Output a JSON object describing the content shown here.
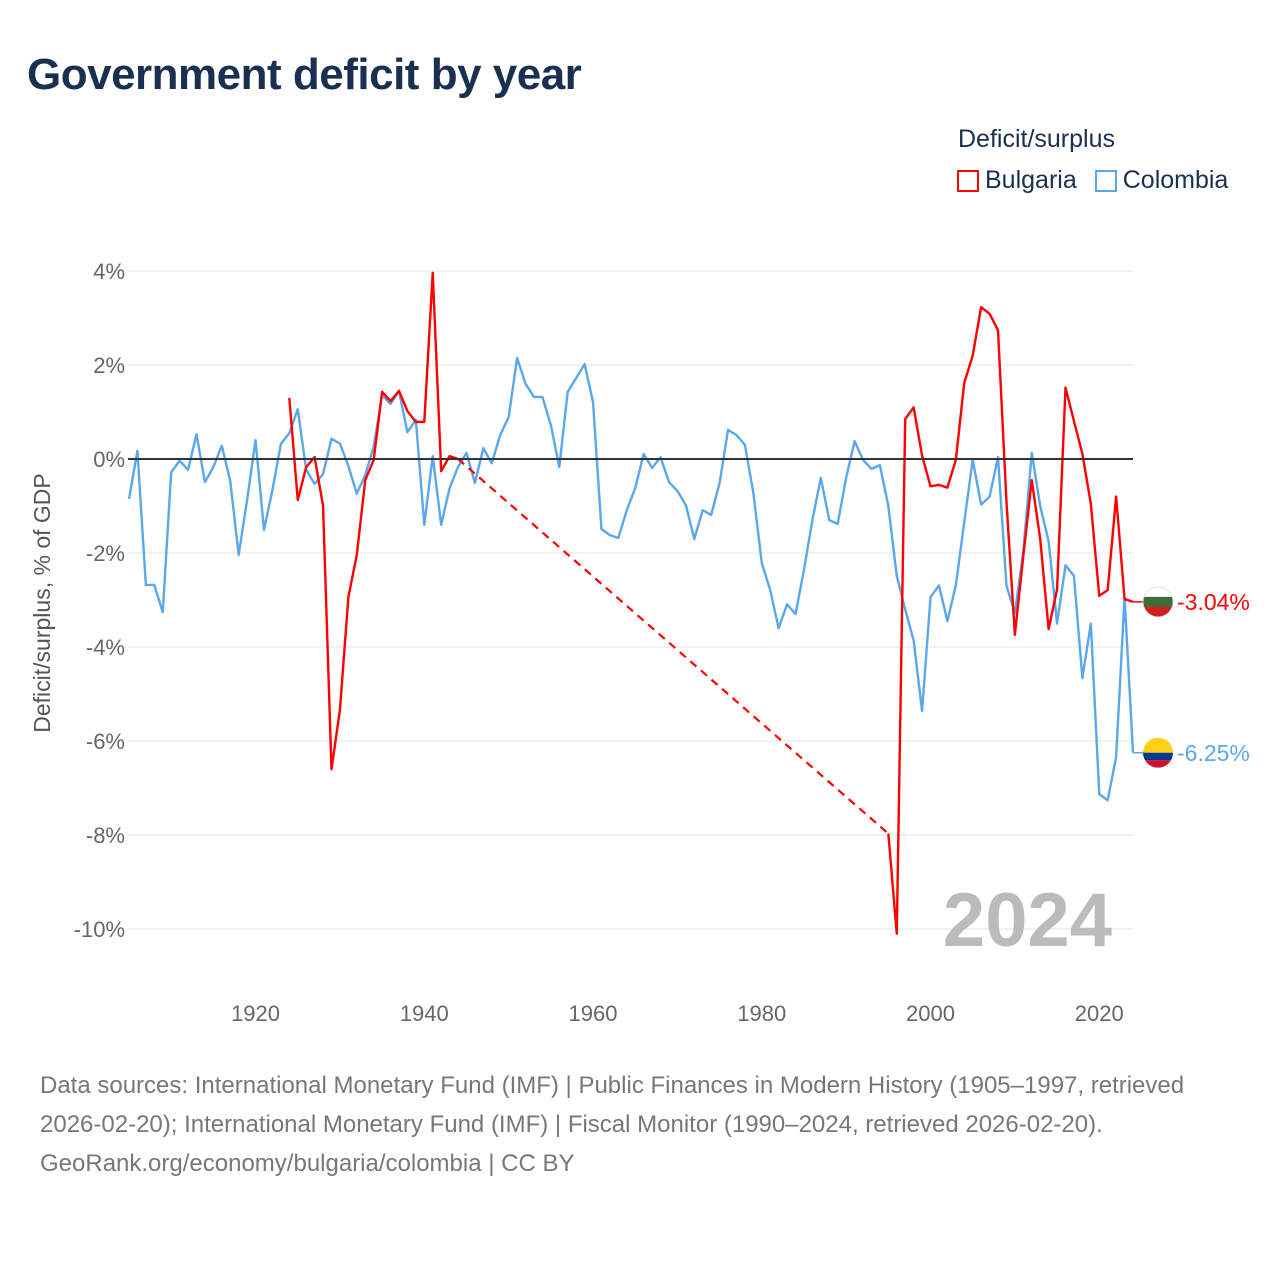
{
  "title": "Government deficit by year",
  "legend": {
    "title": "Deficit/surplus",
    "items": [
      {
        "label": "Bulgaria",
        "color": "#ff0000"
      },
      {
        "label": "Colombia",
        "color": "#5aa7ec"
      }
    ]
  },
  "chart_data": {
    "type": "line",
    "title": "Government deficit by year",
    "xlabel": "",
    "ylabel": "Deficit/surplus, % of GDP",
    "xlim": [
      1905,
      2024
    ],
    "ylim": [
      -10,
      4
    ],
    "yticks": [
      4,
      2,
      0,
      -2,
      -4,
      -6,
      -8,
      -10
    ],
    "ytick_labels": [
      "4%",
      "2%",
      "0%",
      "-2%",
      "-4%",
      "-6%",
      "-8%",
      "-10%"
    ],
    "xticks": [
      1920,
      1940,
      1960,
      1980,
      2000,
      2020
    ],
    "xtick_labels": [
      "1920",
      "1940",
      "1960",
      "1980",
      "2000",
      "2020"
    ],
    "current_year_label": "2024",
    "grid": true,
    "legend_position": "top-right",
    "series": [
      {
        "name": "Bulgaria",
        "color": "#ff0000",
        "end_label": "-3.04%",
        "points": [
          [
            1924,
            1.3
          ],
          [
            1925,
            -0.87
          ],
          [
            1926,
            -0.17
          ],
          [
            1927,
            0.04
          ],
          [
            1928,
            -1.0
          ],
          [
            1929,
            -6.6
          ],
          [
            1930,
            -5.34
          ],
          [
            1931,
            -2.94
          ],
          [
            1932,
            -2.04
          ],
          [
            1933,
            -0.45
          ],
          [
            1934,
            -0.02
          ],
          [
            1935,
            1.43
          ],
          [
            1936,
            1.23
          ],
          [
            1937,
            1.45
          ],
          [
            1938,
            1.02
          ],
          [
            1939,
            0.79
          ],
          [
            1940,
            0.79
          ],
          [
            1941,
            3.96
          ],
          [
            1942,
            -0.26
          ],
          [
            1943,
            0.06
          ],
          [
            1944,
            0.0
          ],
          [
            1995,
            -7.97
          ],
          [
            1996,
            -10.1
          ],
          [
            1997,
            0.85
          ],
          [
            1998,
            1.1
          ],
          [
            1999,
            0.07
          ],
          [
            2000,
            -0.58
          ],
          [
            2001,
            -0.55
          ],
          [
            2002,
            -0.61
          ],
          [
            2003,
            -0.02
          ],
          [
            2004,
            1.62
          ],
          [
            2005,
            2.2
          ],
          [
            2006,
            3.23
          ],
          [
            2007,
            3.09
          ],
          [
            2008,
            2.74
          ],
          [
            2009,
            -0.9
          ],
          [
            2010,
            -3.74
          ],
          [
            2011,
            -2.06
          ],
          [
            2012,
            -0.45
          ],
          [
            2013,
            -1.7
          ],
          [
            2014,
            -3.62
          ],
          [
            2015,
            -2.77
          ],
          [
            2016,
            1.52
          ],
          [
            2017,
            0.81
          ],
          [
            2018,
            0.11
          ],
          [
            2019,
            -0.95
          ],
          [
            2020,
            -2.91
          ],
          [
            2021,
            -2.79
          ],
          [
            2022,
            -0.8
          ],
          [
            2023,
            -2.98
          ],
          [
            2024,
            -3.04
          ]
        ]
      },
      {
        "name": "Colombia",
        "color": "#5aa7ec",
        "end_label": "-6.25%",
        "points": [
          [
            1905,
            -0.85
          ],
          [
            1906,
            0.17
          ],
          [
            1907,
            -2.68
          ],
          [
            1908,
            -2.68
          ],
          [
            1909,
            -3.26
          ],
          [
            1910,
            -0.28
          ],
          [
            1911,
            -0.04
          ],
          [
            1912,
            -0.23
          ],
          [
            1913,
            0.53
          ],
          [
            1914,
            -0.49
          ],
          [
            1915,
            -0.17
          ],
          [
            1916,
            0.28
          ],
          [
            1917,
            -0.47
          ],
          [
            1918,
            -2.04
          ],
          [
            1919,
            -0.87
          ],
          [
            1920,
            0.4
          ],
          [
            1921,
            -1.51
          ],
          [
            1922,
            -0.66
          ],
          [
            1923,
            0.32
          ],
          [
            1924,
            0.55
          ],
          [
            1925,
            1.06
          ],
          [
            1926,
            -0.23
          ],
          [
            1927,
            -0.53
          ],
          [
            1928,
            -0.32
          ],
          [
            1929,
            0.43
          ],
          [
            1930,
            0.33
          ],
          [
            1931,
            -0.15
          ],
          [
            1932,
            -0.74
          ],
          [
            1933,
            -0.34
          ],
          [
            1934,
            0.26
          ],
          [
            1935,
            1.36
          ],
          [
            1936,
            1.17
          ],
          [
            1937,
            1.45
          ],
          [
            1938,
            0.57
          ],
          [
            1939,
            0.83
          ],
          [
            1940,
            -1.4
          ],
          [
            1941,
            0.06
          ],
          [
            1942,
            -1.4
          ],
          [
            1943,
            -0.62
          ],
          [
            1944,
            -0.17
          ],
          [
            1945,
            0.13
          ],
          [
            1946,
            -0.51
          ],
          [
            1947,
            0.23
          ],
          [
            1948,
            -0.09
          ],
          [
            1949,
            0.51
          ],
          [
            1950,
            0.89
          ],
          [
            1951,
            2.15
          ],
          [
            1952,
            1.6
          ],
          [
            1953,
            1.32
          ],
          [
            1954,
            1.32
          ],
          [
            1955,
            0.72
          ],
          [
            1956,
            -0.17
          ],
          [
            1957,
            1.43
          ],
          [
            1958,
            1.72
          ],
          [
            1959,
            2.02
          ],
          [
            1960,
            1.21
          ],
          [
            1961,
            -1.49
          ],
          [
            1962,
            -1.62
          ],
          [
            1963,
            -1.68
          ],
          [
            1964,
            -1.09
          ],
          [
            1965,
            -0.62
          ],
          [
            1966,
            0.11
          ],
          [
            1967,
            -0.19
          ],
          [
            1968,
            0.04
          ],
          [
            1969,
            -0.49
          ],
          [
            1970,
            -0.68
          ],
          [
            1971,
            -0.98
          ],
          [
            1972,
            -1.7
          ],
          [
            1973,
            -1.09
          ],
          [
            1974,
            -1.19
          ],
          [
            1975,
            -0.51
          ],
          [
            1976,
            0.62
          ],
          [
            1977,
            0.51
          ],
          [
            1978,
            0.3
          ],
          [
            1979,
            -0.72
          ],
          [
            1980,
            -2.21
          ],
          [
            1981,
            -2.79
          ],
          [
            1982,
            -3.6
          ],
          [
            1983,
            -3.09
          ],
          [
            1984,
            -3.3
          ],
          [
            1985,
            -2.36
          ],
          [
            1986,
            -1.3
          ],
          [
            1987,
            -0.4
          ],
          [
            1988,
            -1.3
          ],
          [
            1989,
            -1.38
          ],
          [
            1990,
            -0.4
          ],
          [
            1991,
            0.38
          ],
          [
            1992,
            -0.02
          ],
          [
            1993,
            -0.21
          ],
          [
            1994,
            -0.13
          ],
          [
            1995,
            -1.0
          ],
          [
            1996,
            -2.49
          ],
          [
            1997,
            -3.2
          ],
          [
            1998,
            -3.86
          ],
          [
            1999,
            -5.36
          ],
          [
            2000,
            -2.94
          ],
          [
            2001,
            -2.69
          ],
          [
            2002,
            -3.45
          ],
          [
            2003,
            -2.69
          ],
          [
            2004,
            -1.34
          ],
          [
            2005,
            -0.02
          ],
          [
            2006,
            -0.97
          ],
          [
            2007,
            -0.8
          ],
          [
            2008,
            0.04
          ],
          [
            2009,
            -2.69
          ],
          [
            2010,
            -3.28
          ],
          [
            2011,
            -1.96
          ],
          [
            2012,
            0.13
          ],
          [
            2013,
            -1.0
          ],
          [
            2014,
            -1.75
          ],
          [
            2015,
            -3.5
          ],
          [
            2016,
            -2.26
          ],
          [
            2017,
            -2.49
          ],
          [
            2018,
            -4.66
          ],
          [
            2019,
            -3.5
          ],
          [
            2020,
            -7.13
          ],
          [
            2021,
            -7.26
          ],
          [
            2022,
            -6.34
          ],
          [
            2023,
            -2.94
          ],
          [
            2024,
            -6.25
          ]
        ]
      }
    ]
  },
  "footer": {
    "sources": "Data sources: International Monetary Fund (IMF) | Public Finances in Modern History (1905–1997, retrieved 2026-02-20); International Monetary Fund (IMF) | Fiscal Monitor (1990–2024, retrieved 2026-02-20).",
    "attribution": "GeoRank.org/economy/bulgaria/colombia | CC BY"
  }
}
